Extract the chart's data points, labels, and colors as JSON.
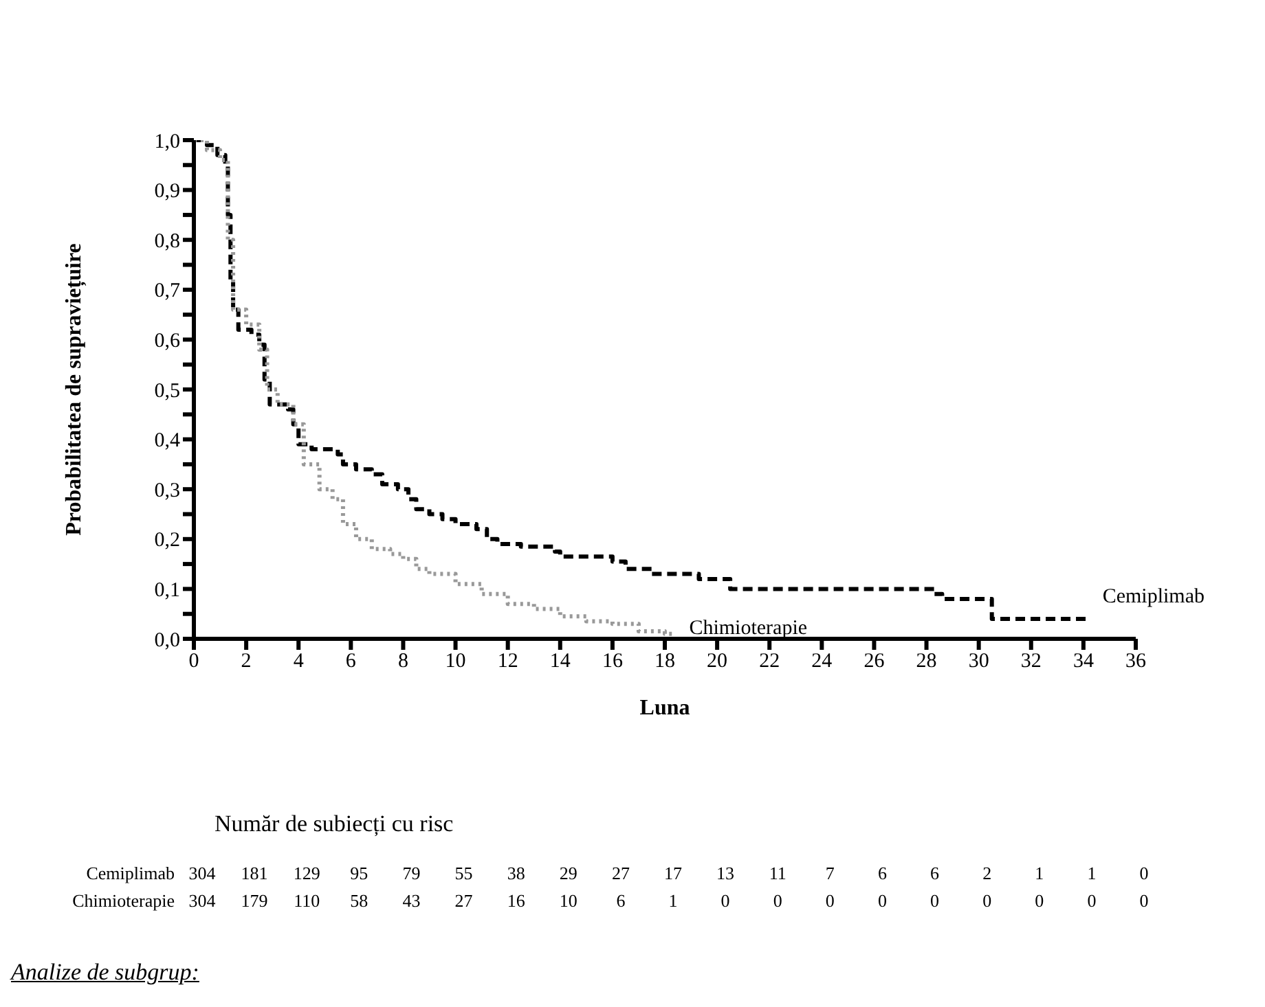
{
  "chart_data": {
    "type": "step",
    "xlabel": "Luna",
    "ylabel": "Probabilitatea de supraviețuire",
    "xlim": [
      0,
      36
    ],
    "xticks": [
      0,
      2,
      4,
      6,
      8,
      10,
      12,
      14,
      16,
      18,
      20,
      22,
      24,
      26,
      28,
      30,
      32,
      34,
      36
    ],
    "ylim": [
      0,
      1
    ],
    "yticks": [
      {
        "value": 0,
        "label": "0,0"
      },
      {
        "value": 0.05,
        "label": null
      },
      {
        "value": 0.1,
        "label": "0,1"
      },
      {
        "value": 0.15,
        "label": null
      },
      {
        "value": 0.2,
        "label": "0,2"
      },
      {
        "value": 0.25,
        "label": null
      },
      {
        "value": 0.3,
        "label": "0,3"
      },
      {
        "value": 0.35,
        "label": null
      },
      {
        "value": 0.4,
        "label": "0,4"
      },
      {
        "value": 0.45,
        "label": null
      },
      {
        "value": 0.5,
        "label": "0,5"
      },
      {
        "value": 0.55,
        "label": null
      },
      {
        "value": 0.6,
        "label": "0,6"
      },
      {
        "value": 0.65,
        "label": null
      },
      {
        "value": 0.7,
        "label": "0,7"
      },
      {
        "value": 0.75,
        "label": null
      },
      {
        "value": 0.8,
        "label": "0,8"
      },
      {
        "value": 0.85,
        "label": null
      },
      {
        "value": 0.9,
        "label": "0,9"
      },
      {
        "value": 0.95,
        "label": null
      },
      {
        "value": 1,
        "label": "1,0"
      }
    ],
    "marker": "none",
    "series": [
      {
        "name": "Cemiplimab",
        "color": "#000000",
        "line_style": "dashed",
        "x": [
          0,
          0.5,
          0.9,
          1.2,
          1.3,
          1.4,
          1.5,
          1.7,
          2.2,
          2.5,
          2.7,
          2.9,
          3.6,
          3.8,
          4.0,
          4.5,
          5.5,
          5.7,
          6.2,
          6.8,
          7.2,
          7.8,
          8.2,
          8.5,
          9.0,
          9.5,
          10.0,
          10.8,
          11.2,
          11.6,
          12.5,
          13.8,
          14.0,
          16.0,
          16.5,
          17.5,
          19.3,
          20.5,
          28.3,
          28.6,
          30.5,
          34.1
        ],
        "values": [
          1.0,
          0.99,
          0.97,
          0.95,
          0.85,
          0.72,
          0.66,
          0.62,
          0.61,
          0.59,
          0.52,
          0.47,
          0.46,
          0.43,
          0.39,
          0.38,
          0.37,
          0.35,
          0.34,
          0.33,
          0.31,
          0.3,
          0.28,
          0.26,
          0.25,
          0.24,
          0.23,
          0.22,
          0.2,
          0.19,
          0.185,
          0.175,
          0.165,
          0.155,
          0.14,
          0.13,
          0.12,
          0.1,
          0.09,
          0.08,
          0.04,
          0.04
        ]
      },
      {
        "name": "Chimioterapie",
        "color": "#999999",
        "line_style": "dotted",
        "x": [
          0,
          0.5,
          1.0,
          1.3,
          1.5,
          2.0,
          2.5,
          2.8,
          3.2,
          3.8,
          4.2,
          4.8,
          5.3,
          5.7,
          6.2,
          6.8,
          7.5,
          8.0,
          8.5,
          9.0,
          10.0,
          11.0,
          12.0,
          13.0,
          14.0,
          15.0,
          16.0,
          17.0,
          18.0,
          18.3
        ],
        "values": [
          1.0,
          0.98,
          0.96,
          0.8,
          0.66,
          0.63,
          0.58,
          0.5,
          0.47,
          0.43,
          0.35,
          0.3,
          0.28,
          0.23,
          0.2,
          0.18,
          0.17,
          0.16,
          0.14,
          0.13,
          0.11,
          0.09,
          0.07,
          0.06,
          0.045,
          0.035,
          0.03,
          0.015,
          0.01,
          0.015
        ]
      }
    ],
    "annotations": [
      "Număr de subiecți cu risc",
      "Cemiplimab 304 181 129 95 79 55 38 29 27 17 13 11 7 6 6 2 1 1 0",
      "Chimioterapie 304 179 110 58 43 27 16 10 6 1 0 0 0 0 0 0 0 0 0",
      "Analize de subgrup:"
    ]
  }
}
